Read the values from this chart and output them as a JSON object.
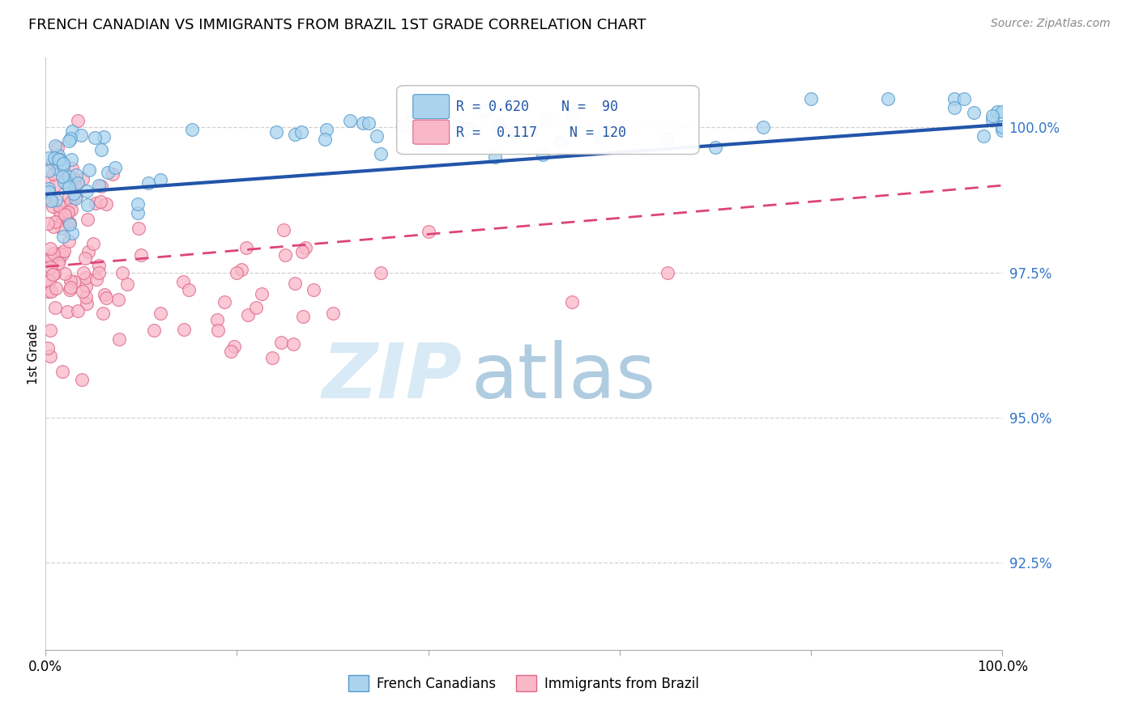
{
  "title": "FRENCH CANADIAN VS IMMIGRANTS FROM BRAZIL 1ST GRADE CORRELATION CHART",
  "source": "Source: ZipAtlas.com",
  "ylabel": "1st Grade",
  "xlim": [
    0,
    100
  ],
  "ylim": [
    91.0,
    101.2
  ],
  "yticks": [
    92.5,
    95.0,
    97.5,
    100.0
  ],
  "ytick_labels": [
    "92.5%",
    "95.0%",
    "97.5%",
    "100.0%"
  ],
  "r_blue": 0.62,
  "n_blue": 90,
  "r_pink": 0.117,
  "n_pink": 120,
  "blue_color": "#aad4ee",
  "pink_color": "#f9b8c8",
  "blue_edge_color": "#5599cc",
  "pink_edge_color": "#dd6688",
  "blue_line_color": "#2255aa",
  "pink_line_color": "#dd4477",
  "watermark_zip_color": "#d8eaf5",
  "watermark_atlas_color": "#b0cce0",
  "legend_label_blue": "French Canadians",
  "legend_label_pink": "Immigrants from Brazil",
  "blue_line_start_y": 98.85,
  "blue_line_end_y": 100.05,
  "pink_line_start_y": 97.6,
  "pink_line_end_y": 99.0
}
